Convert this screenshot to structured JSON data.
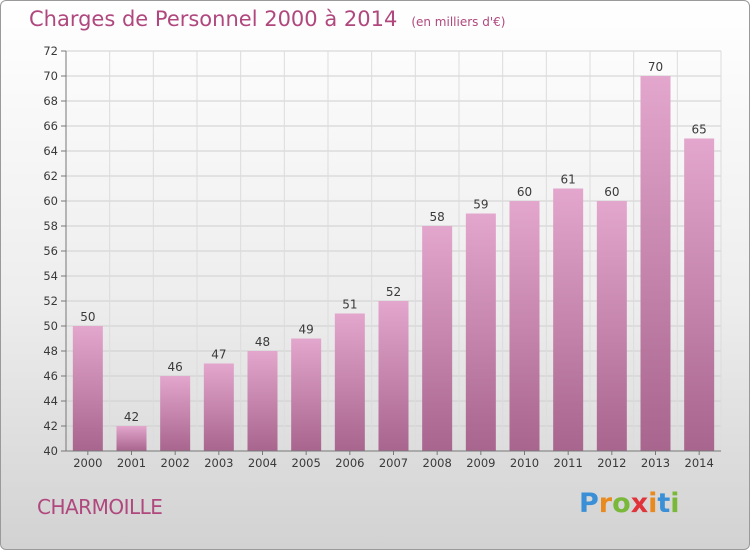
{
  "chart_data": {
    "type": "bar",
    "title": "Charges de Personnel 2000 à 2014",
    "subtitle": "(en milliers d'€)",
    "categories": [
      "2000",
      "2001",
      "2002",
      "2003",
      "2004",
      "2005",
      "2006",
      "2007",
      "2008",
      "2009",
      "2010",
      "2011",
      "2012",
      "2013",
      "2014"
    ],
    "values": [
      50,
      42,
      46,
      47,
      48,
      49,
      51,
      52,
      58,
      59,
      60,
      61,
      60,
      70,
      65
    ],
    "ylim": [
      40,
      72
    ],
    "yticks": [
      40,
      42,
      44,
      46,
      48,
      50,
      52,
      54,
      56,
      58,
      60,
      62,
      64,
      66,
      68,
      70,
      72
    ],
    "grid": true,
    "bar_color_top": "#e3a6cc",
    "bar_color_bottom": "#a8658e"
  },
  "footer": {
    "commune": "CHARMOILLE",
    "logo_letters": [
      "P",
      "r",
      "o",
      "x",
      "i",
      "t",
      "i"
    ],
    "logo_colors": [
      "#3a8fd6",
      "#e98a1e",
      "#7ab83a",
      "#e0333a",
      "#e98a1e",
      "#3a8fd6",
      "#7ab83a"
    ]
  }
}
